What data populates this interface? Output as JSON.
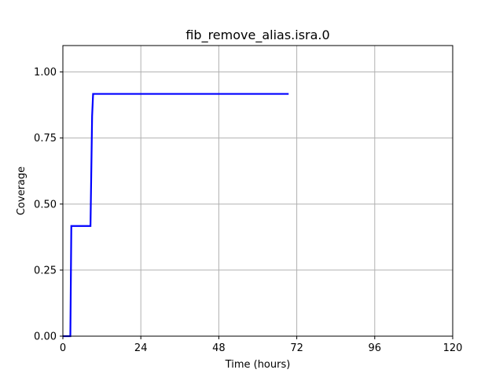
{
  "chart_data": {
    "type": "line",
    "title": "fib_remove_alias.isra.0",
    "xlabel": "Time (hours)",
    "ylabel": "Coverage",
    "xlim": [
      0,
      120
    ],
    "ylim": [
      0,
      1.1
    ],
    "xticks": [
      0,
      24,
      48,
      72,
      96,
      120
    ],
    "xtick_labels": [
      "0",
      "24",
      "48",
      "72",
      "96",
      "120"
    ],
    "yticks": [
      0,
      0.25,
      0.5,
      0.75,
      1.0
    ],
    "ytick_labels": [
      "0.00",
      "0.25",
      "0.50",
      "0.75",
      "1.00"
    ],
    "grid": true,
    "series": [
      {
        "color": "#0000ff",
        "x": [
          0,
          2.3,
          2.6,
          8.5,
          8.7,
          9.0,
          9.3,
          69.5
        ],
        "y": [
          0,
          0,
          0.417,
          0.417,
          0.583,
          0.833,
          0.917,
          0.917
        ]
      }
    ]
  }
}
